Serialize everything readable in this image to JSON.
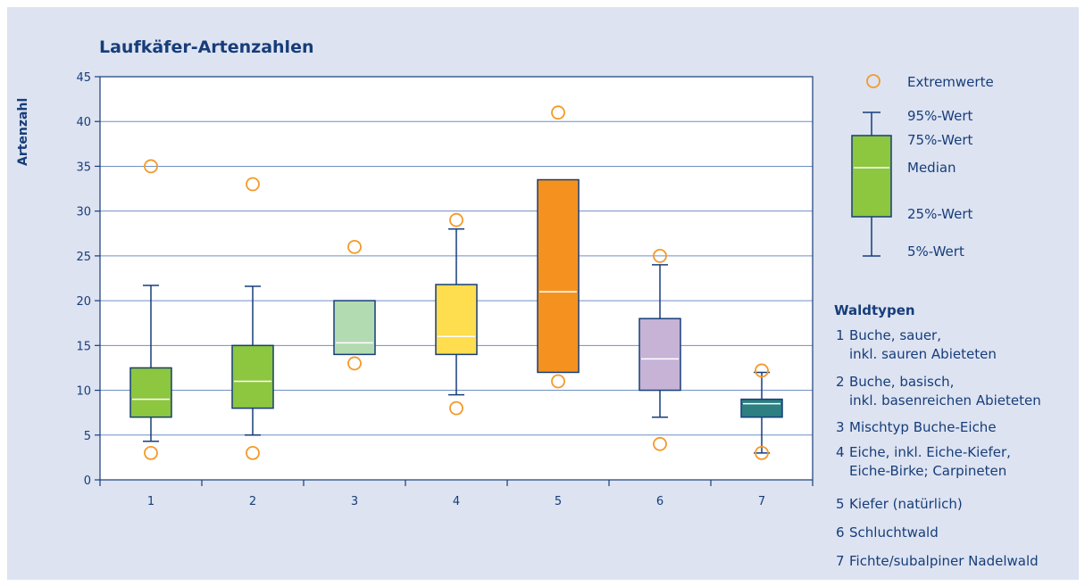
{
  "colors": {
    "background": "#dde3f1",
    "plot_background": "#ffffff",
    "axis": "#173d7a",
    "grid": "#6f8fc4",
    "outlier": "#f39a2a",
    "text": "#173d7a"
  },
  "chart_data": {
    "type": "box",
    "title": "Laufkäfer-Artenzahlen",
    "xlabel": "",
    "ylabel": "Artenzahl",
    "ylim": [
      0,
      45
    ],
    "yticks": [
      0,
      5,
      10,
      15,
      20,
      25,
      30,
      35,
      40,
      45
    ],
    "grid": true,
    "categories": [
      "1",
      "2",
      "3",
      "4",
      "5",
      "6",
      "7"
    ],
    "boxes": [
      {
        "category": "1",
        "p5": 4.3,
        "q1": 7,
        "median": 9,
        "q3": 12.5,
        "p95": 21.7,
        "outliers": [
          35,
          3
        ],
        "color": "#8dc63f"
      },
      {
        "category": "2",
        "p5": 5,
        "q1": 8,
        "median": 11,
        "q3": 15,
        "p95": 21.6,
        "outliers": [
          33,
          3
        ],
        "color": "#8dc63f"
      },
      {
        "category": "3",
        "p5": null,
        "q1": 14,
        "median": 15.3,
        "q3": 20,
        "p95": null,
        "outliers": [
          26,
          13
        ],
        "color": "#b3dbb2"
      },
      {
        "category": "4",
        "p5": 9.5,
        "q1": 14,
        "median": 16,
        "q3": 21.8,
        "p95": 28,
        "outliers": [
          29,
          8
        ],
        "color": "#fedd4e"
      },
      {
        "category": "5",
        "p5": null,
        "q1": 12,
        "median": 21,
        "q3": 33.5,
        "p95": null,
        "outliers": [
          41,
          11
        ],
        "color": "#f5921f"
      },
      {
        "category": "6",
        "p5": 7,
        "q1": 10,
        "median": 13.5,
        "q3": 18,
        "p95": 24,
        "outliers": [
          25,
          4
        ],
        "color": "#c6b3d6"
      },
      {
        "category": "7",
        "p5": 3,
        "q1": 7,
        "median": 8.5,
        "q3": 9,
        "p95": 12,
        "outliers": [
          12.2,
          3
        ],
        "color": "#2d7f82"
      }
    ],
    "legend": {
      "outlier_label": "Extremwerte",
      "p95_label": "95%-Wert",
      "q3_label": "75%-Wert",
      "median_label": "Median",
      "q1_label": "25%-Wert",
      "p5_label": "5%-Wert",
      "box_color": "#8dc63f",
      "placement": "right"
    },
    "waldtypen": {
      "title": "Waldtypen",
      "items": [
        {
          "num": "1",
          "lines": [
            "Buche, sauer,",
            "inkl. sauren Abieteten"
          ]
        },
        {
          "num": "2",
          "lines": [
            "Buche, basisch,",
            "inkl. basenreichen Abieteten"
          ]
        },
        {
          "num": "3",
          "lines": [
            "Mischtyp Buche-Eiche"
          ]
        },
        {
          "num": "4",
          "lines": [
            "Eiche, inkl. Eiche-Kiefer,",
            "Eiche-Birke; Carpineten"
          ]
        },
        {
          "num": "5",
          "lines": [
            "Kiefer (natürlich)"
          ]
        },
        {
          "num": "6",
          "lines": [
            "Schluchtwald"
          ]
        },
        {
          "num": "7",
          "lines": [
            "Fichte/subalpiner Nadelwald"
          ]
        }
      ]
    }
  }
}
